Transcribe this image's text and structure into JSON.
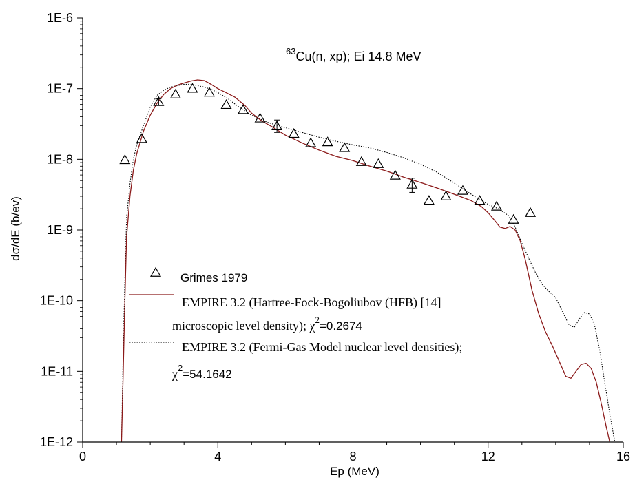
{
  "chart_data": {
    "type": "scatter",
    "title_prefix": "63",
    "title": "Cu(n, xp); Ei 14.8 MeV",
    "xlabel": "Ep (MeV)",
    "ylabel": "dσ/dE (b/ev)",
    "xlim": [
      0,
      16
    ],
    "ylim": [
      1e-12,
      1e-06
    ],
    "yscale": "log",
    "xticks": [
      0,
      4,
      8,
      12,
      16
    ],
    "yticks": [
      {
        "value": 1e-12,
        "label": "1E-12"
      },
      {
        "value": 1e-11,
        "label": "1E-11"
      },
      {
        "value": 1e-10,
        "label": "1E-10"
      },
      {
        "value": 1e-09,
        "label": "1E-9"
      },
      {
        "value": 1e-08,
        "label": "1E-8"
      },
      {
        "value": 1e-07,
        "label": "1E-7"
      },
      {
        "value": 1e-06,
        "label": "1E-6"
      }
    ],
    "grid": false,
    "legend_position": "lower-left",
    "series": [
      {
        "name": "Grimes 1979",
        "style": "triangle-markers",
        "color": "#000000",
        "x": [
          1.25,
          1.75,
          2.25,
          2.75,
          3.25,
          3.75,
          4.25,
          4.75,
          5.25,
          5.75,
          6.25,
          6.75,
          7.25,
          7.75,
          8.25,
          8.75,
          9.25,
          9.75,
          10.25,
          10.75,
          11.25,
          11.75,
          12.25,
          12.75,
          13.25
        ],
        "y": [
          9.8e-09,
          1.95e-08,
          6.5e-08,
          8.3e-08,
          1e-07,
          8.8e-08,
          5.9e-08,
          5e-08,
          3.8e-08,
          2.95e-08,
          2.3e-08,
          1.7e-08,
          1.75e-08,
          1.45e-08,
          9.2e-09,
          8.6e-09,
          5.9e-09,
          4.4e-09,
          2.6e-09,
          3e-09,
          3.6e-09,
          2.6e-09,
          2.15e-09,
          1.4e-09,
          1.75e-09
        ],
        "error_bars": [
          {
            "x": 2.25,
            "low": 5.8e-08,
            "high": 7.2e-08
          },
          {
            "x": 5.75,
            "low": 2.4e-08,
            "high": 3.6e-08
          },
          {
            "x": 9.75,
            "low": 3.4e-09,
            "high": 5.4e-09
          }
        ]
      },
      {
        "name": "EMPIRE 3.2 (Hartree-Fock-Bogoliubov (HFB) [14]",
        "name_continued": "microscopic level density); χ",
        "name_exponent": "2",
        "name_suffix": "=0.2674",
        "style": "solid-line",
        "color": "#8b1a1a",
        "x": [
          1.15,
          1.2,
          1.25,
          1.3,
          1.4,
          1.5,
          1.6,
          1.8,
          2.0,
          2.2,
          2.4,
          2.6,
          2.8,
          3.0,
          3.2,
          3.4,
          3.6,
          3.8,
          4.0,
          4.2,
          4.5,
          4.8,
          5.0,
          5.3,
          5.6,
          6.0,
          6.5,
          7.0,
          7.5,
          8.0,
          8.5,
          9.0,
          9.5,
          10.0,
          10.5,
          11.0,
          11.5,
          11.8,
          12.0,
          12.2,
          12.35,
          12.5,
          12.65,
          12.8,
          12.95,
          13.1,
          13.3,
          13.5,
          13.7,
          13.9,
          14.1,
          14.3,
          14.45,
          14.6,
          14.75,
          14.9,
          15.05,
          15.2,
          15.35,
          15.5,
          15.6
        ],
        "y": [
          1e-12,
          1e-11,
          1e-10,
          8e-10,
          3e-09,
          7e-09,
          1.2e-08,
          2.5e-08,
          4.2e-08,
          6.2e-08,
          8.3e-08,
          1e-07,
          1.12e-07,
          1.2e-07,
          1.28e-07,
          1.33e-07,
          1.3e-07,
          1.15e-07,
          1e-07,
          9e-08,
          7.6e-08,
          5.8e-08,
          4.5e-08,
          3.5e-08,
          2.9e-08,
          2.2e-08,
          1.7e-08,
          1.35e-08,
          1.1e-08,
          9.6e-09,
          8e-09,
          6.8e-09,
          5.6e-09,
          4.7e-09,
          3.9e-09,
          3.2e-09,
          2.6e-09,
          2.15e-09,
          1.75e-09,
          1.35e-09,
          1.1e-09,
          1.05e-09,
          1.12e-09,
          1e-09,
          7e-10,
          3.8e-10,
          1.4e-10,
          6.5e-11,
          3.6e-11,
          2.3e-11,
          1.4e-11,
          8.5e-12,
          8e-12,
          1e-11,
          1.25e-11,
          1.3e-11,
          1.1e-11,
          7e-12,
          3.5e-12,
          1.6e-12,
          1e-12
        ]
      },
      {
        "name": "EMPIRE 3.2 (Fermi-Gas Model nuclear level densities);",
        "name_continued": "χ",
        "name_exponent": "2",
        "name_suffix": "=54.1642",
        "style": "dotted-line",
        "color": "#000000",
        "x": [
          1.15,
          1.2,
          1.25,
          1.3,
          1.4,
          1.5,
          1.6,
          1.8,
          2.0,
          2.2,
          2.4,
          2.6,
          2.8,
          3.0,
          3.2,
          3.4,
          3.6,
          3.8,
          4.0,
          4.3,
          4.6,
          5.0,
          5.5,
          6.0,
          6.5,
          7.0,
          7.5,
          8.0,
          8.5,
          9.0,
          9.5,
          10.0,
          10.5,
          11.0,
          11.5,
          12.0,
          12.3,
          12.6,
          12.8,
          13.0,
          13.2,
          13.4,
          13.6,
          13.8,
          14.0,
          14.2,
          14.4,
          14.55,
          14.7,
          14.85,
          15.0,
          15.15,
          15.3,
          15.45,
          15.6,
          15.75
        ],
        "y": [
          1e-12,
          2e-11,
          2e-10,
          1.5e-09,
          4.5e-09,
          1e-08,
          1.6e-08,
          3e-08,
          5.5e-08,
          8e-08,
          9.5e-08,
          1.05e-07,
          1.1e-07,
          1.15e-07,
          1.15e-07,
          1.1e-07,
          1.05e-07,
          9.8e-08,
          8.8e-08,
          7.2e-08,
          5.6e-08,
          4.2e-08,
          3.3e-08,
          2.8e-08,
          2.4e-08,
          2.05e-08,
          1.8e-08,
          1.6e-08,
          1.45e-08,
          1.25e-08,
          1.05e-08,
          8.5e-09,
          6.5e-09,
          4.6e-09,
          3.2e-09,
          2.3e-09,
          2e-09,
          1.6e-09,
          1.1e-09,
          6.5e-10,
          4e-10,
          2.5e-10,
          1.7e-10,
          1.35e-10,
          1.1e-10,
          7e-11,
          4.5e-11,
          4.2e-11,
          5.5e-11,
          6.8e-11,
          6.5e-11,
          4.5e-11,
          2e-11,
          7e-12,
          2.5e-12,
          1e-12
        ]
      }
    ]
  }
}
